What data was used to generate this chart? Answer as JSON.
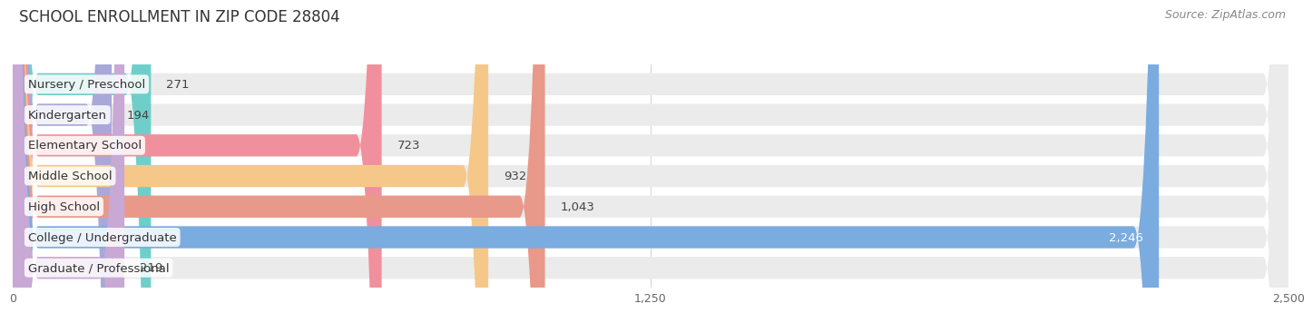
{
  "title": "SCHOOL ENROLLMENT IN ZIP CODE 28804",
  "source": "Source: ZipAtlas.com",
  "categories": [
    "Nursery / Preschool",
    "Kindergarten",
    "Elementary School",
    "Middle School",
    "High School",
    "College / Undergraduate",
    "Graduate / Professional"
  ],
  "values": [
    271,
    194,
    723,
    932,
    1043,
    2246,
    219
  ],
  "bar_colors": [
    "#6ecfca",
    "#a9a8d8",
    "#f0909c",
    "#f5c88a",
    "#e8998a",
    "#7aace0",
    "#c8a8d4"
  ],
  "bar_bg_color": "#ebebeb",
  "xlim": [
    0,
    2500
  ],
  "xticks": [
    0,
    1250,
    2500
  ],
  "value_label_inside_threshold": 2000,
  "title_fontsize": 12,
  "source_fontsize": 9,
  "label_fontsize": 9.5,
  "tick_fontsize": 9,
  "bar_height": 0.72,
  "bar_gap": 1.0,
  "background_color": "#ffffff"
}
